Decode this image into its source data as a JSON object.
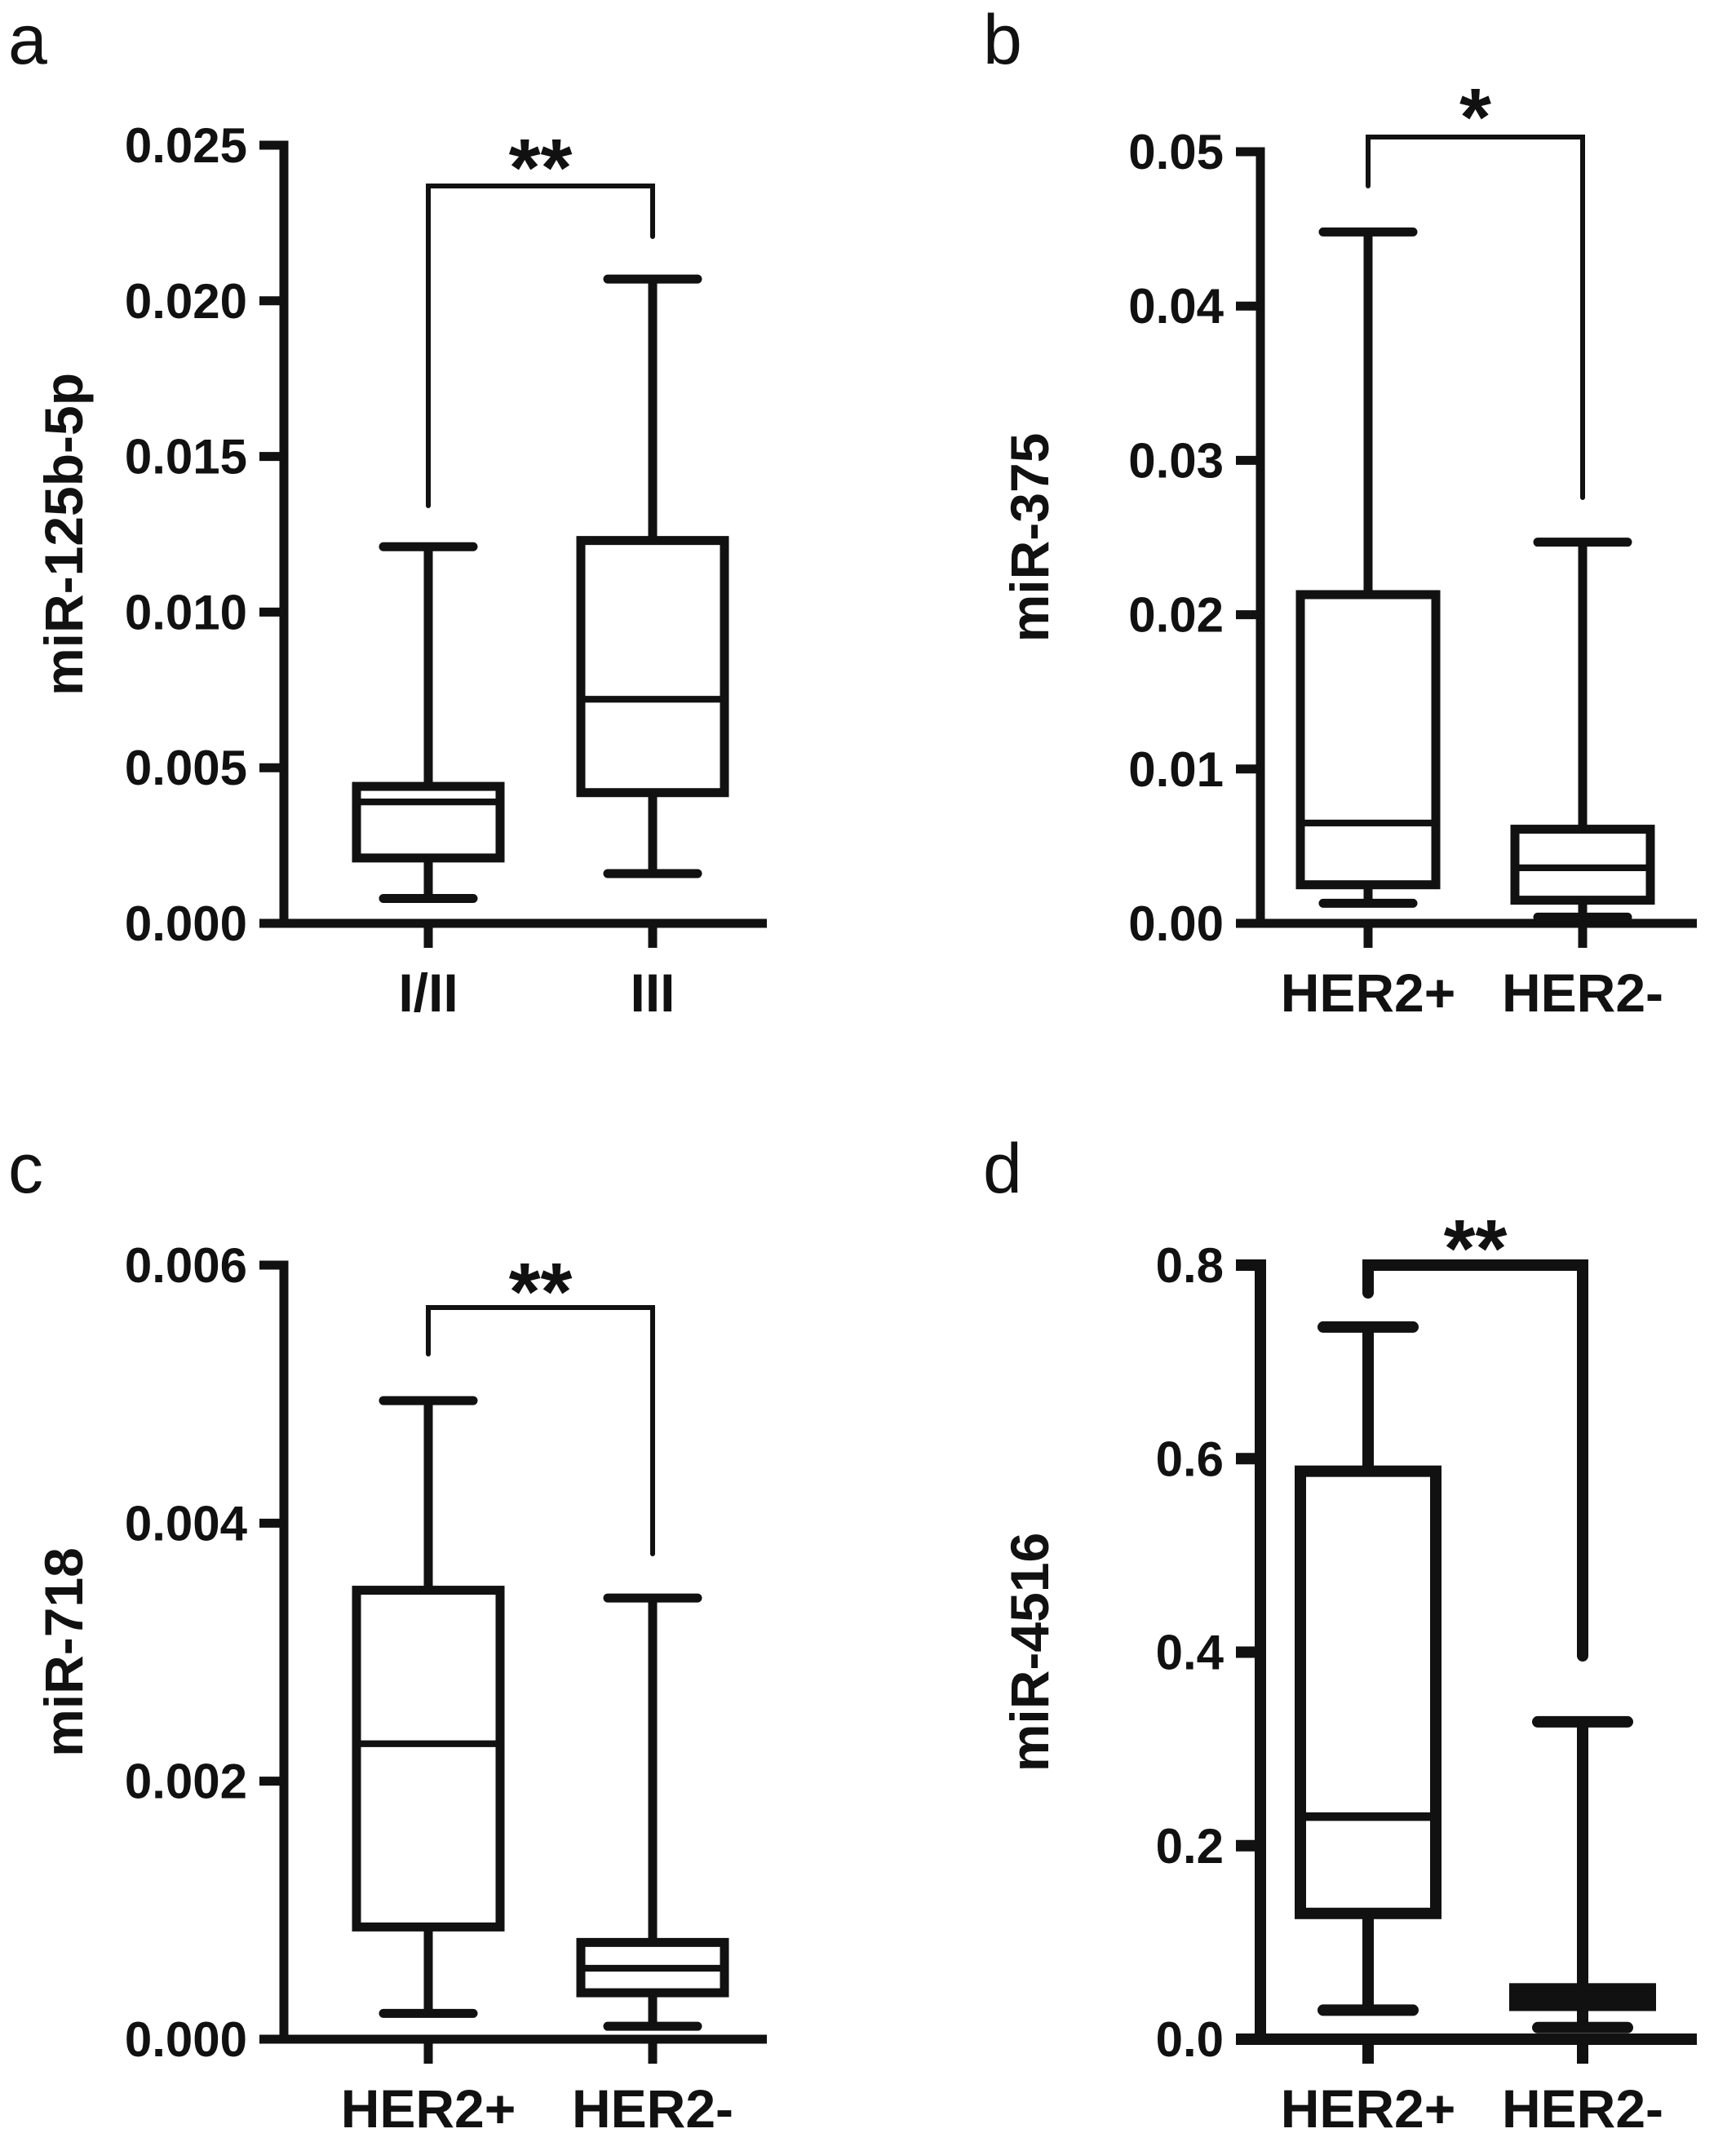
{
  "chart_data": [
    {
      "panel": "a",
      "type": "box",
      "ylabel": "miR-125b-5p",
      "ylim": [
        0,
        0.025
      ],
      "yticks": [
        "0.000",
        "0.005",
        "0.010",
        "0.015",
        "0.020",
        "0.025"
      ],
      "categories": [
        "I/II",
        "III"
      ],
      "boxes": [
        {
          "min": 0.0008,
          "q1": 0.0021,
          "median": 0.0039,
          "q3": 0.0044,
          "max": 0.0121
        },
        {
          "min": 0.0016,
          "q1": 0.0042,
          "median": 0.0072,
          "q3": 0.0123,
          "max": 0.0207
        }
      ],
      "significance": "**"
    },
    {
      "panel": "b",
      "type": "box",
      "ylabel": "miR-375",
      "ylim": [
        0,
        0.05
      ],
      "yticks": [
        "0.00",
        "0.01",
        "0.02",
        "0.03",
        "0.04",
        "0.05"
      ],
      "categories": [
        "HER2+",
        "HER2-"
      ],
      "boxes": [
        {
          "min": 0.0013,
          "q1": 0.0025,
          "median": 0.0065,
          "q3": 0.0213,
          "max": 0.0448
        },
        {
          "min": 0.0004,
          "q1": 0.0015,
          "median": 0.0036,
          "q3": 0.0061,
          "max": 0.0247
        }
      ],
      "significance": "*"
    },
    {
      "panel": "c",
      "type": "box",
      "ylabel": "miR-718",
      "ylim": [
        0,
        0.006
      ],
      "yticks": [
        "0.000",
        "0.002",
        "0.004",
        "0.006"
      ],
      "categories": [
        "HER2+",
        "HER2-"
      ],
      "boxes": [
        {
          "min": 0.0002,
          "q1": 0.00087,
          "median": 0.00229,
          "q3": 0.00348,
          "max": 0.00495
        },
        {
          "min": 0.0001,
          "q1": 0.00036,
          "median": 0.00055,
          "q3": 0.00075,
          "max": 0.00342
        }
      ],
      "significance": "**"
    },
    {
      "panel": "d",
      "type": "box",
      "ylabel": "miR-4516",
      "ylim": [
        0,
        0.8
      ],
      "yticks": [
        "0.0",
        "0.2",
        "0.4",
        "0.6",
        "0.8"
      ],
      "categories": [
        "HER2+",
        "HER2-"
      ],
      "boxes": [
        {
          "min": 0.03,
          "q1": 0.13,
          "median": 0.23,
          "q3": 0.587,
          "max": 0.736
        },
        {
          "min": 0.012,
          "q1": 0.035,
          "median": 0.045,
          "q3": 0.052,
          "max": 0.328
        }
      ],
      "significance": "**"
    }
  ]
}
